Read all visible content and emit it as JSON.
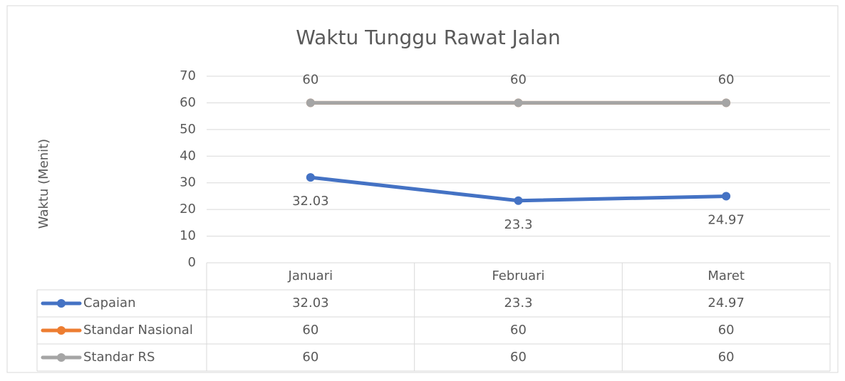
{
  "chart_data": {
    "type": "line",
    "title": "Waktu Tunggu Rawat Jalan",
    "y_label": "Waktu (Menit)",
    "categories": [
      "Januari",
      "Februari",
      "Maret"
    ],
    "series": [
      {
        "name": "Capaian",
        "color": "#4472c4",
        "values": [
          32.03,
          23.3,
          24.97
        ],
        "label_position": "below"
      },
      {
        "name": "Standar Nasional",
        "color": "#ed7d31",
        "values": [
          60,
          60,
          60
        ],
        "label_position": "none"
      },
      {
        "name": "Standar RS",
        "color": "#a5a5a5",
        "values": [
          60,
          60,
          60
        ],
        "label_position": "above"
      }
    ],
    "ylim": [
      0,
      70
    ],
    "yticks": [
      0,
      10,
      20,
      30,
      40,
      50,
      60,
      70
    ],
    "grid": true,
    "data_table": true
  }
}
